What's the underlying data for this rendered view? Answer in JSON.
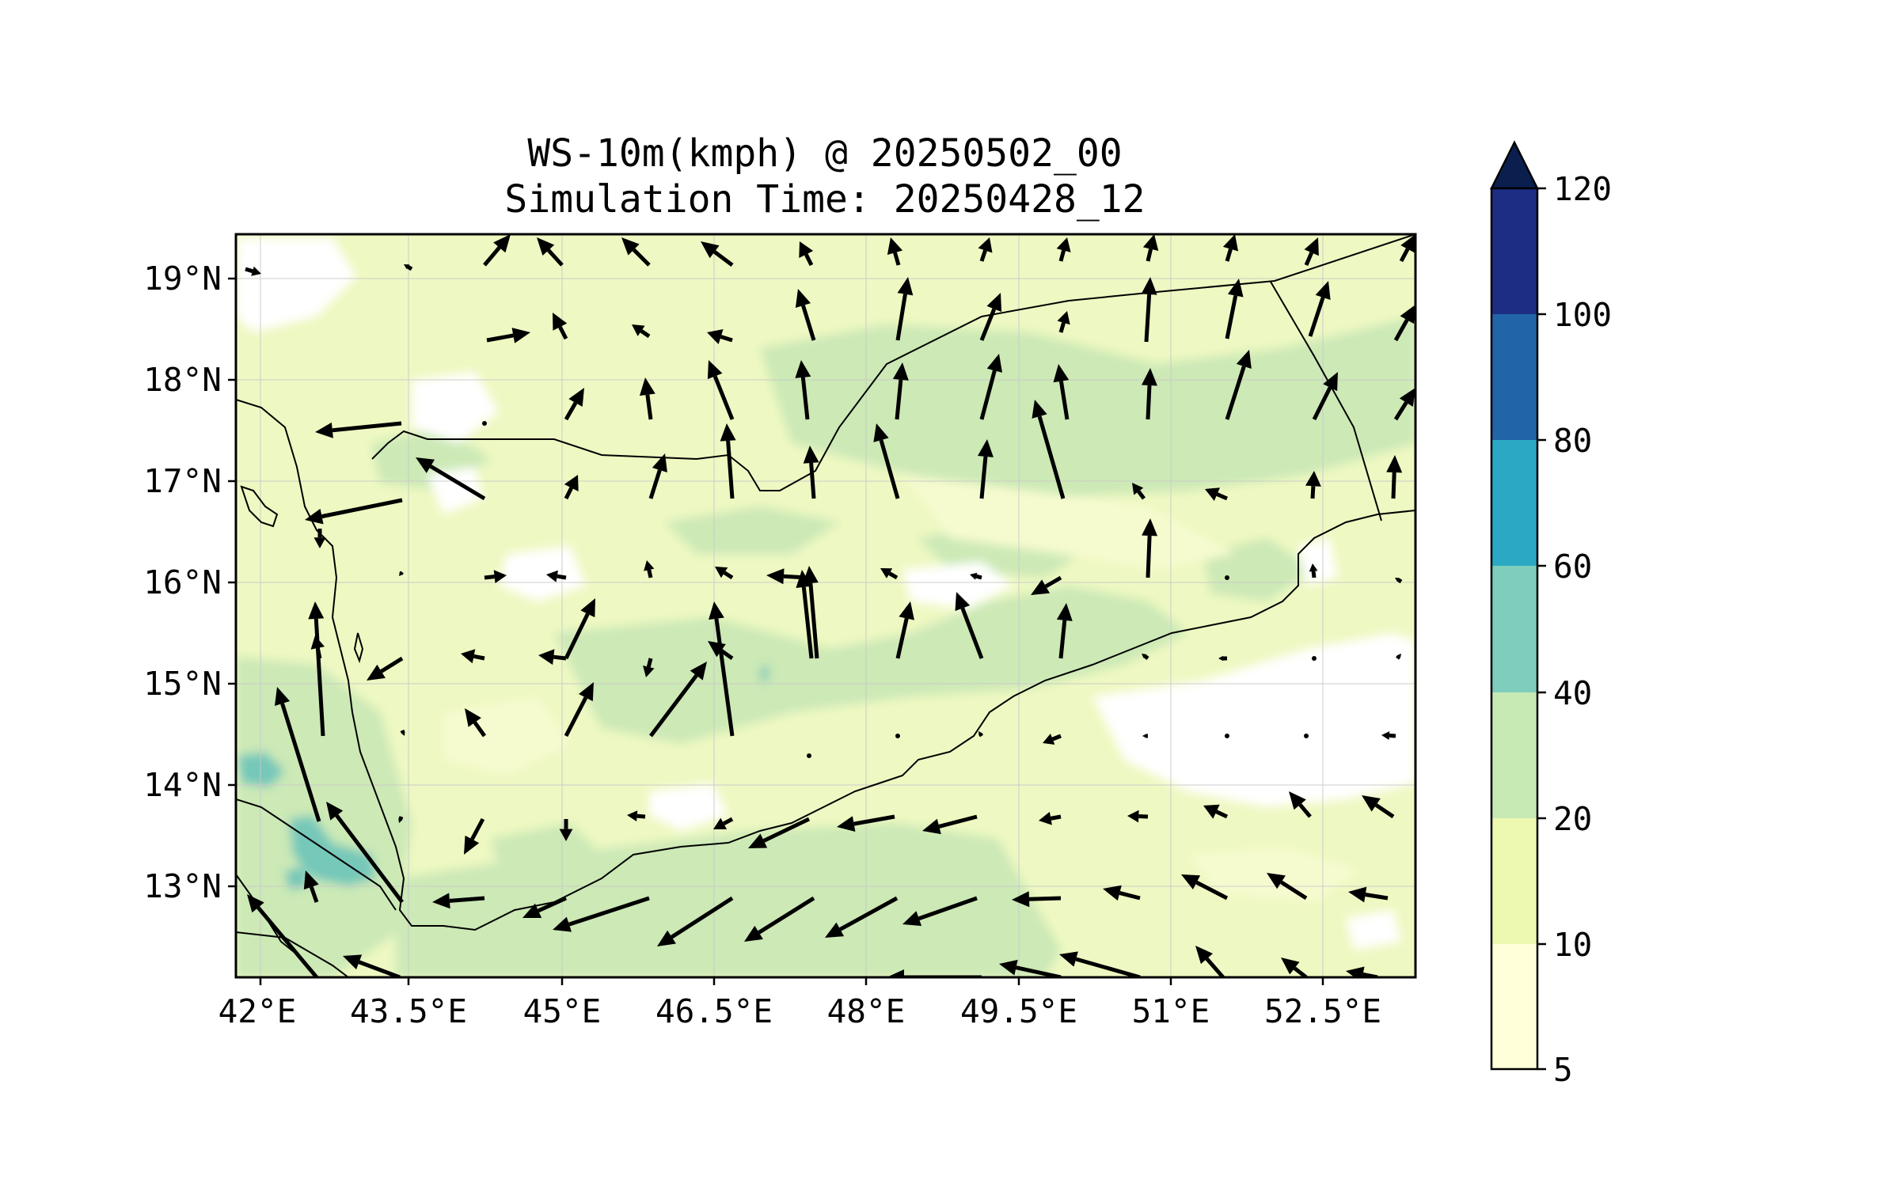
{
  "figure": {
    "title": "WS-10m(kmph) @ 20250502_00",
    "subtitle": "Simulation Time: 20250428_12"
  },
  "map": {
    "lon_range": [
      42.0,
      53.8
    ],
    "lat_range": [
      12.15,
      19.45
    ],
    "lon_ticks": [
      "42°E",
      "43.5°E",
      "45°E",
      "46.5°E",
      "48°E",
      "49.5°E",
      "51°E",
      "52.5°E"
    ],
    "lon_tick_values": [
      42.0,
      43.5,
      45.0,
      46.5,
      48.0,
      49.5,
      51.0,
      52.5
    ],
    "lat_ticks": [
      "19°N",
      "18°N",
      "17°N",
      "16°N",
      "15°N",
      "14°N",
      "13°N"
    ],
    "lat_tick_values": [
      19,
      18,
      17,
      16,
      15,
      14,
      13
    ],
    "gridlines": true,
    "vector_field": "10 m wind arrows",
    "colors": {
      "frame": "#000000",
      "coastline": "#000000",
      "arrow": "#000000",
      "background_fill": "#eef8c2"
    }
  },
  "colorbar": {
    "levels": [
      5,
      10,
      20,
      40,
      60,
      80,
      100,
      120
    ],
    "tick_labels": [
      "5",
      "10",
      "20",
      "40",
      "60",
      "80",
      "100",
      "120"
    ],
    "colors": [
      "#ffffd9",
      "#edf8b1",
      "#c7e9b4",
      "#7fcdbb",
      "#2ba9c4",
      "#2264a8",
      "#1d2d84"
    ],
    "extend_color": "#0b1f4f",
    "extend": "max"
  },
  "chart_data": {
    "type": "heatmap",
    "title": "WS-10m(kmph) @ 20250502_00",
    "subtitle": "Simulation Time: 20250428_12",
    "xlim": [
      42.0,
      53.8
    ],
    "ylim": [
      12.15,
      19.45
    ],
    "color_levels": [
      5,
      10,
      20,
      40,
      60,
      80,
      100,
      120
    ],
    "grid": true
  }
}
